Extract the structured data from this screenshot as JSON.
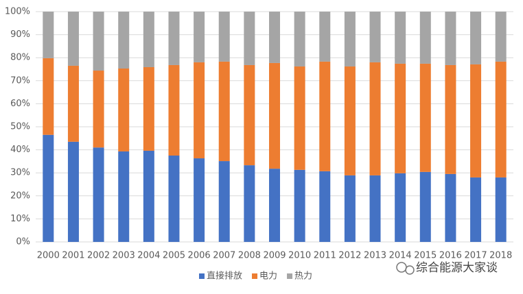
{
  "chart_data": {
    "type": "stacked_bar_percent",
    "categories": [
      "2000",
      "2001",
      "2002",
      "2003",
      "2004",
      "2005",
      "2006",
      "2007",
      "2008",
      "2009",
      "2010",
      "2011",
      "2012",
      "2013",
      "2014",
      "2015",
      "2016",
      "2017",
      "2018"
    ],
    "series": [
      {
        "name": "直接排放",
        "color": "#4472c4",
        "values": [
          46.5,
          43.5,
          41,
          39.3,
          39.6,
          37.5,
          36.3,
          35.1,
          33.3,
          31.8,
          31.3,
          30.7,
          28.9,
          28.9,
          29.8,
          30.4,
          29.5,
          28,
          28
        ]
      },
      {
        "name": "电力",
        "color": "#ed7d31",
        "values": [
          33.3,
          33,
          33.4,
          36,
          36.3,
          39.3,
          41.7,
          43.2,
          43.5,
          45.9,
          44.9,
          47.6,
          47.3,
          49.1,
          47.6,
          47,
          47.3,
          49.1,
          50.3
        ]
      },
      {
        "name": "热力",
        "color": "#a5a5a5",
        "values": [
          20.2,
          23.5,
          25.6,
          24.7,
          24.1,
          23.2,
          22,
          21.7,
          23.2,
          22.3,
          23.8,
          21.7,
          23.8,
          22,
          22.6,
          22.6,
          23.2,
          22.9,
          21.7
        ]
      }
    ],
    "ylim": [
      0,
      100
    ],
    "yticks": [
      {
        "value": 0,
        "label": "0%"
      },
      {
        "value": 10,
        "label": "10%"
      },
      {
        "value": 20,
        "label": "20%"
      },
      {
        "value": 30,
        "label": "30%"
      },
      {
        "value": 40,
        "label": "40%"
      },
      {
        "value": 50,
        "label": "50%"
      },
      {
        "value": 60,
        "label": "60%"
      },
      {
        "value": 70,
        "label": "70%"
      },
      {
        "value": 80,
        "label": "80%"
      },
      {
        "value": 90,
        "label": "90%"
      },
      {
        "value": 100,
        "label": "100%"
      }
    ],
    "grid": true,
    "legend": "bottom",
    "watermark": "综合能源大家谈"
  }
}
